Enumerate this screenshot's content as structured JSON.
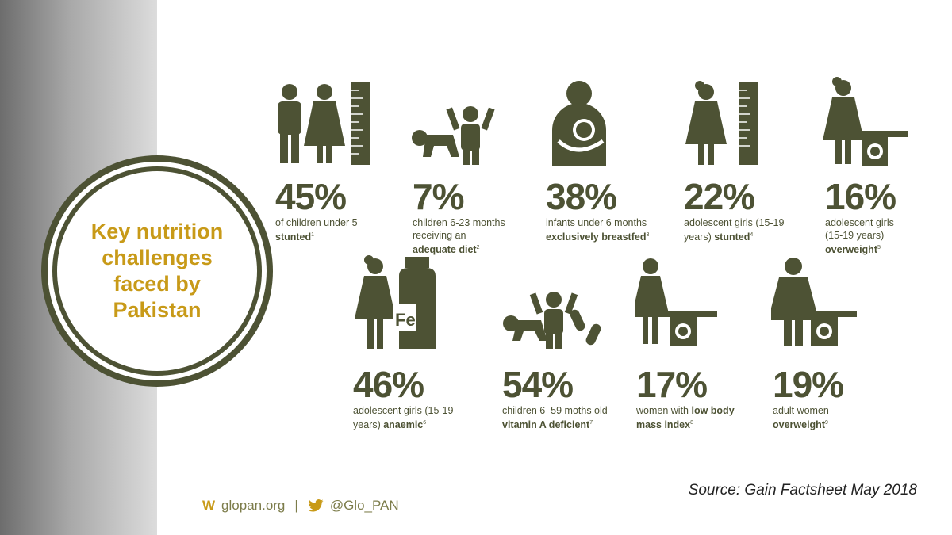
{
  "title": "Key nutrition challenges faced by Pakistan",
  "stats": [
    {
      "pct": "45%",
      "desc": "of children under 5",
      "bold": "stunted",
      "ref": "1"
    },
    {
      "pct": "7%",
      "desc": "children 6-23 months receiving an",
      "bold": "adequate diet",
      "ref": "2"
    },
    {
      "pct": "38%",
      "desc": "infants under 6 months",
      "bold": "exclusively breastfed",
      "ref": "3"
    },
    {
      "pct": "22%",
      "desc": "adolescent girls (15-19 years)",
      "bold": "stunted",
      "ref": "4"
    },
    {
      "pct": "16%",
      "desc": "adolescent girls (15-19 years)",
      "bold": "overweight",
      "ref": "5"
    },
    {
      "pct": "46%",
      "desc": "adolescent girls (15-19 years)",
      "bold": "anaemic",
      "ref": "6"
    },
    {
      "pct": "54%",
      "desc": "children 6–59 moths old",
      "bold": "vitamin A deficient",
      "ref": "7"
    },
    {
      "pct": "17%",
      "desc": "women with",
      "bold": "low body mass index",
      "ref": "8"
    },
    {
      "pct": "19%",
      "desc": "adult women",
      "bold": "overweight",
      "ref": "9"
    }
  ],
  "icons": {
    "fe_label": "Fe"
  },
  "footer": {
    "logo": "W",
    "site": "glopan.org",
    "separator": "|",
    "handle": "@Glo_PAN"
  },
  "source": "Source: Gain Factsheet May 2018",
  "colors": {
    "olive": "#4d5234",
    "gold": "#c89a18"
  }
}
